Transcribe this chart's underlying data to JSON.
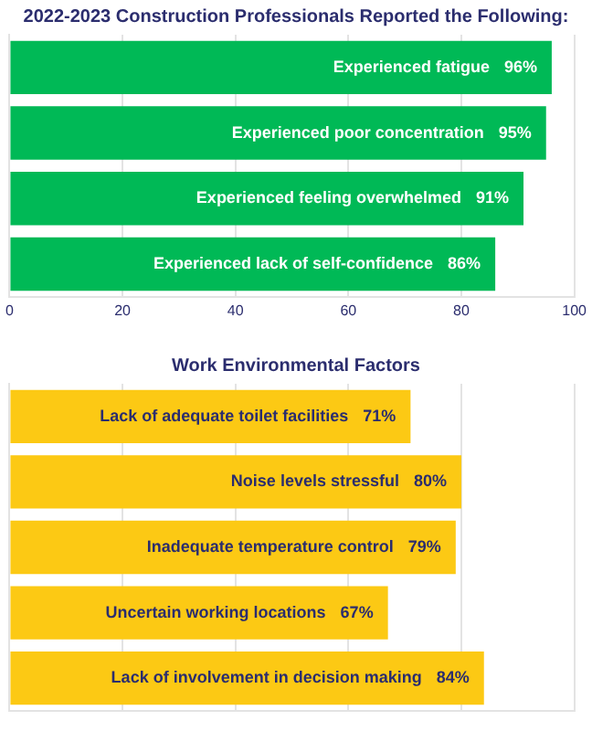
{
  "chart_data": [
    {
      "type": "bar",
      "orientation": "horizontal",
      "title": "2022-2023 Construction Professionals Reported the Following:",
      "categories": [
        "Experienced fatigue",
        "Experienced poor concentration",
        "Experienced feeling overwhelmed",
        "Experienced lack of self-confidence"
      ],
      "values": [
        96,
        95,
        91,
        86
      ],
      "value_labels": [
        "96%",
        "95%",
        "91%",
        "86%"
      ],
      "color": "#00b956",
      "xlim": [
        0,
        100
      ],
      "xticks": [
        0,
        20,
        40,
        60,
        80,
        100
      ],
      "grid": "x",
      "tick_labels": "x"
    },
    {
      "type": "bar",
      "orientation": "horizontal",
      "title": "Work Environmental Factors",
      "categories": [
        "Lack of adequate toilet facilities",
        "Noise levels stressful",
        "Inadequate temperature control",
        "Uncertain working locations",
        "Lack of involvement in decision making"
      ],
      "values": [
        71,
        80,
        79,
        67,
        84
      ],
      "value_labels": [
        "71%",
        "80%",
        "79%",
        "67%",
        "84%"
      ],
      "color": "#fcc914",
      "xlim": [
        0,
        100
      ],
      "xticks": [
        {
          "value": 0,
          "label": null
        },
        {
          "value": 20,
          "label": null
        },
        {
          "value": 40,
          "label": null
        },
        {
          "value": 60,
          "label": null
        },
        {
          "value": 80,
          "label": null
        },
        {
          "value": 100,
          "label": null
        }
      ],
      "grid": "x",
      "tick_labels": false
    }
  ]
}
